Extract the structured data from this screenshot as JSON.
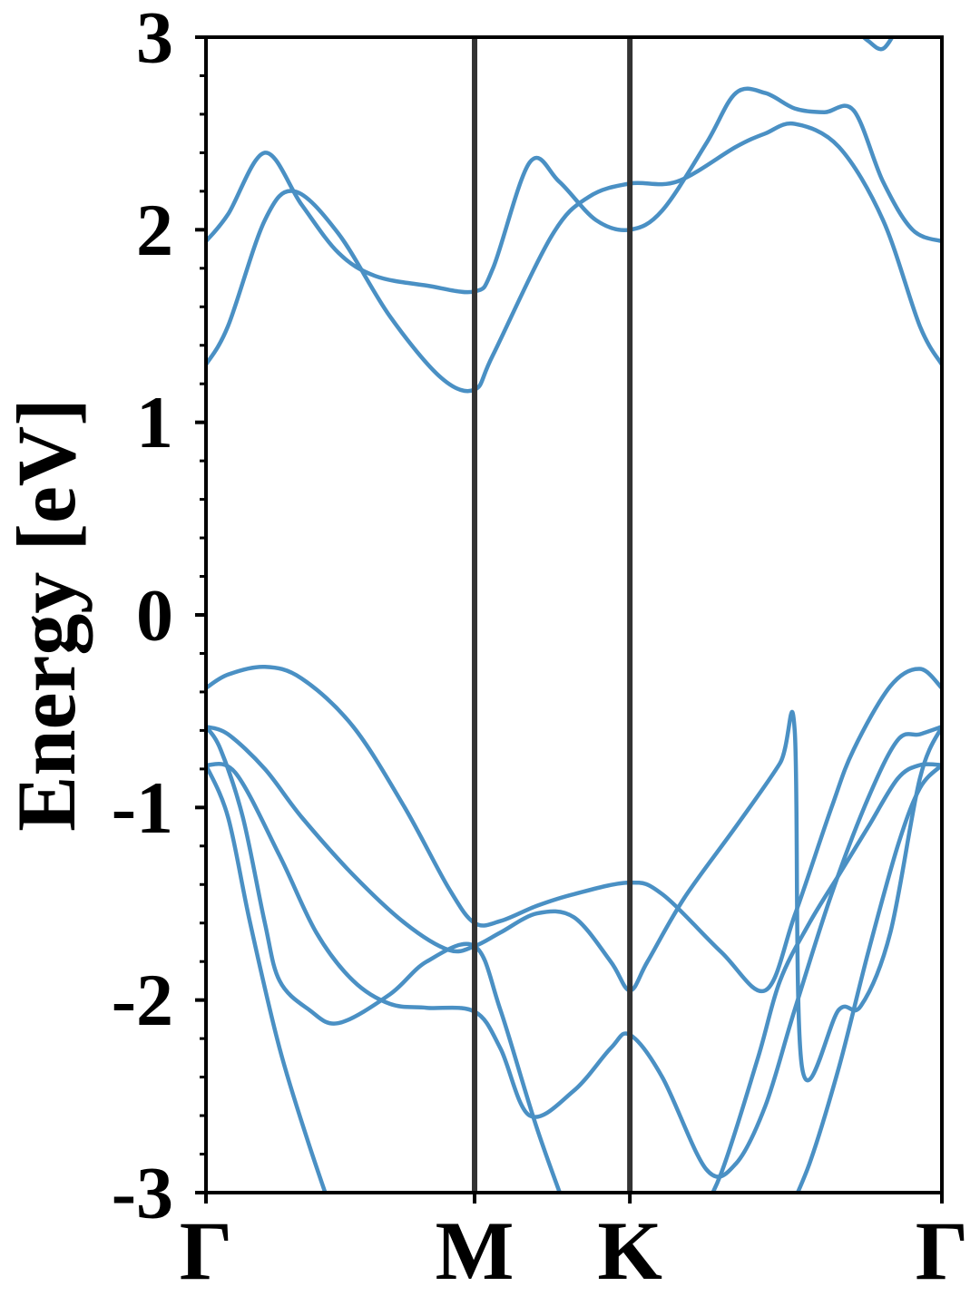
{
  "chart_data": {
    "type": "line",
    "title": "",
    "xlabel": "",
    "ylabel": "Energy [eV]",
    "ylim": [
      -3,
      3
    ],
    "xlim": [
      0,
      1
    ],
    "y_ticks": [
      {
        "value": 3,
        "label": "3"
      },
      {
        "value": 2,
        "label": "2"
      },
      {
        "value": 1,
        "label": "1"
      },
      {
        "value": 0,
        "label": "0"
      },
      {
        "value": -1,
        "label": "-1"
      },
      {
        "value": -2,
        "label": "-2"
      },
      {
        "value": -3,
        "label": "-3"
      }
    ],
    "y_minor_step": 0.2,
    "x_ticks": [
      {
        "value": 0.0,
        "label": "Γ"
      },
      {
        "value": 0.365,
        "label": "M"
      },
      {
        "value": 0.576,
        "label": "K"
      },
      {
        "value": 1.0,
        "label": "Γ"
      }
    ],
    "vlines": [
      0.365,
      0.576
    ],
    "grid": false,
    "legend": "none",
    "colors": {
      "band": "#4a90c4",
      "vline": "#333333",
      "axis": "#000000"
    },
    "series": [
      {
        "x": [
          0.0,
          0.03,
          0.08,
          0.13,
          0.2,
          0.27,
          0.33,
          0.365,
          0.4,
          0.45,
          0.5,
          0.576,
          0.62,
          0.7,
          0.76,
          0.8,
          0.85,
          0.88,
          0.93,
          0.97,
          1.0
        ],
        "y": [
          -0.38,
          -0.31,
          -0.27,
          -0.33,
          -0.58,
          -1.0,
          -1.42,
          -1.6,
          -1.59,
          -1.51,
          -1.45,
          -1.39,
          -1.45,
          -1.75,
          -1.95,
          -1.56,
          -1.0,
          -0.7,
          -0.37,
          -0.28,
          -0.38
        ]
      },
      {
        "x": [
          0.0,
          0.03,
          0.08,
          0.13,
          0.2,
          0.27,
          0.33,
          0.365,
          0.4,
          0.45,
          0.5,
          0.55,
          0.576,
          0.6,
          0.65,
          0.72,
          0.78,
          0.8,
          0.81,
          0.86,
          0.89,
          0.93,
          0.97,
          1.0
        ],
        "y": [
          -0.58,
          -0.62,
          -0.8,
          -1.05,
          -1.35,
          -1.6,
          -1.74,
          -1.72,
          -1.65,
          -1.55,
          -1.57,
          -1.8,
          -1.95,
          -1.8,
          -1.47,
          -1.1,
          -0.77,
          -0.6,
          -2.35,
          -2.05,
          -2.03,
          -1.65,
          -0.85,
          -0.58
        ]
      },
      {
        "x": [
          0.0,
          0.04,
          0.1,
          0.15,
          0.2,
          0.25,
          0.3,
          0.365,
          0.4,
          0.44,
          0.5,
          0.55,
          0.576,
          0.62,
          0.68,
          0.72,
          0.76,
          0.8,
          0.85,
          0.9,
          0.94,
          0.97,
          1.0
        ],
        "y": [
          -0.78,
          -0.82,
          -1.25,
          -1.65,
          -1.9,
          -2.02,
          -2.04,
          -2.06,
          -2.25,
          -2.6,
          -2.47,
          -2.25,
          -2.18,
          -2.4,
          -2.88,
          -2.85,
          -2.55,
          -2.05,
          -1.45,
          -0.95,
          -0.65,
          -0.62,
          -0.58
        ]
      },
      {
        "x": [
          0.0,
          0.02,
          0.05,
          0.08,
          0.1,
          0.14,
          0.18,
          0.25,
          0.3,
          0.365,
          0.4,
          0.45,
          0.5
        ],
        "y": [
          -0.58,
          -0.7,
          -1.05,
          -1.6,
          -1.9,
          -2.05,
          -2.12,
          -1.97,
          -1.8,
          -1.72,
          -2.05,
          -2.67,
          -3.2
        ]
      },
      {
        "x": [
          0.66,
          0.7,
          0.75,
          0.78,
          0.82,
          0.86,
          0.9,
          0.94,
          0.97,
          1.0
        ],
        "y": [
          -3.2,
          -2.9,
          -2.3,
          -1.9,
          -1.6,
          -1.35,
          -1.1,
          -0.85,
          -0.78,
          -0.78
        ]
      },
      {
        "x": [
          0.0,
          0.03,
          0.06,
          0.1,
          0.14,
          0.18
        ],
        "y": [
          -0.78,
          -1.05,
          -1.6,
          -2.25,
          -2.75,
          -3.2
        ]
      },
      {
        "x": [
          0.78,
          0.82,
          0.86,
          0.9,
          0.94,
          0.97,
          1.0
        ],
        "y": [
          -3.2,
          -2.85,
          -2.35,
          -1.75,
          -1.2,
          -0.9,
          -0.78
        ]
      },
      {
        "x": [
          0.0,
          0.03,
          0.08,
          0.12,
          0.18,
          0.25,
          0.32,
          0.365,
          0.39,
          0.47,
          0.52,
          0.576,
          0.64,
          0.72,
          0.76,
          0.8,
          0.86,
          0.92,
          0.97,
          1.0
        ],
        "y": [
          1.3,
          1.5,
          2.05,
          2.2,
          1.98,
          1.55,
          1.23,
          1.17,
          1.35,
          1.97,
          2.17,
          2.24,
          2.25,
          2.43,
          2.5,
          2.55,
          2.43,
          2.05,
          1.5,
          1.3
        ]
      },
      {
        "x": [
          0.0,
          0.03,
          0.08,
          0.13,
          0.18,
          0.23,
          0.3,
          0.365,
          0.39,
          0.44,
          0.48,
          0.53,
          0.576,
          0.62,
          0.68,
          0.72,
          0.76,
          0.8,
          0.84,
          0.88,
          0.92,
          0.96,
          1.0
        ],
        "y": [
          1.94,
          2.08,
          2.4,
          2.13,
          1.88,
          1.76,
          1.71,
          1.68,
          1.8,
          2.35,
          2.25,
          2.05,
          2.0,
          2.1,
          2.45,
          2.71,
          2.71,
          2.63,
          2.61,
          2.62,
          2.25,
          2.0,
          1.94
        ]
      },
      {
        "x": [
          0.88,
          0.9,
          0.92,
          0.94
        ],
        "y": [
          3.05,
          2.98,
          2.94,
          3.05
        ]
      }
    ]
  }
}
